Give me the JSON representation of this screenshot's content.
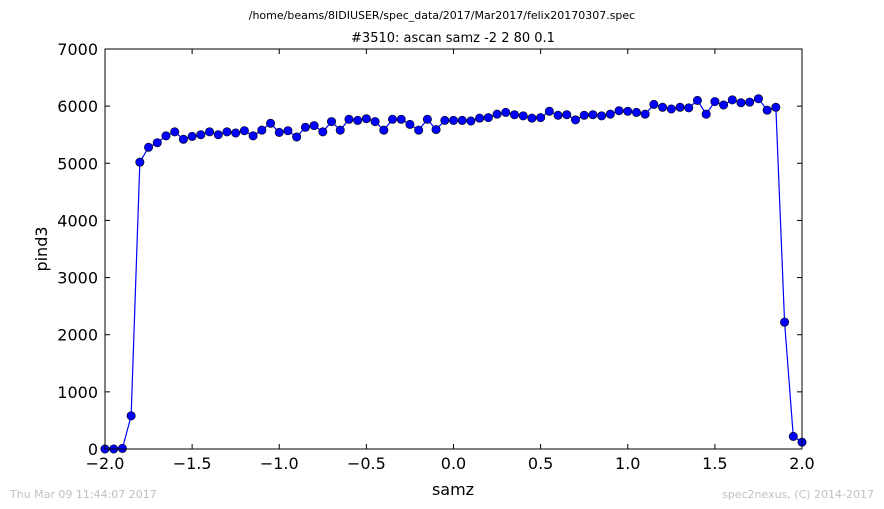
{
  "suptitle": "/home/beams/8IDIUSER/spec_data/2017/Mar2017/felix20170307.spec",
  "footer_left": "Thu Mar 09 11:44:07 2017",
  "footer_right": "spec2nexus, (C) 2014-2017",
  "chart_data": {
    "type": "line",
    "title": "#3510: ascan  samz -2 2  80 0.1",
    "xlabel": "samz",
    "ylabel": "pind3",
    "xlim": [
      -2.0,
      2.0
    ],
    "ylim": [
      0,
      7000
    ],
    "xticks": [
      -2.0,
      -1.5,
      -1.0,
      -0.5,
      0.0,
      0.5,
      1.0,
      1.5,
      2.0
    ],
    "xtick_labels": [
      "−2.0",
      "−1.5",
      "−1.0",
      "−0.5",
      "0.0",
      "0.5",
      "1.0",
      "1.5",
      "2.0"
    ],
    "yticks": [
      0,
      1000,
      2000,
      3000,
      4000,
      5000,
      6000,
      7000
    ],
    "ytick_labels": [
      "0",
      "1000",
      "2000",
      "3000",
      "4000",
      "5000",
      "6000",
      "7000"
    ],
    "grid": false,
    "series_color": "#0000ff",
    "series": [
      {
        "x": [
          -2.0,
          -1.95,
          -1.9,
          -1.85,
          -1.8,
          -1.75,
          -1.7,
          -1.65,
          -1.6,
          -1.55,
          -1.5,
          -1.45,
          -1.4,
          -1.35,
          -1.3,
          -1.25,
          -1.2,
          -1.15,
          -1.1,
          -1.05,
          -1.0,
          -0.95,
          -0.9,
          -0.85,
          -0.8,
          -0.75,
          -0.7,
          -0.65,
          -0.6,
          -0.55,
          -0.5,
          -0.45,
          -0.4,
          -0.35,
          -0.3,
          -0.25,
          -0.2,
          -0.15,
          -0.1,
          -0.05,
          0.0,
          0.05,
          0.1,
          0.15,
          0.2,
          0.25,
          0.3,
          0.35,
          0.4,
          0.45,
          0.5,
          0.55,
          0.6,
          0.65,
          0.7,
          0.75,
          0.8,
          0.85,
          0.9,
          0.95,
          1.0,
          1.05,
          1.1,
          1.15,
          1.2,
          1.25,
          1.3,
          1.35,
          1.4,
          1.45,
          1.5,
          1.55,
          1.6,
          1.65,
          1.7,
          1.75,
          1.8,
          1.85,
          1.9,
          1.95,
          2.0
        ],
        "y": [
          0,
          0,
          10,
          580,
          5020,
          5280,
          5360,
          5480,
          5550,
          5420,
          5470,
          5500,
          5550,
          5500,
          5550,
          5530,
          5570,
          5480,
          5580,
          5700,
          5540,
          5570,
          5460,
          5630,
          5660,
          5550,
          5730,
          5580,
          5770,
          5750,
          5780,
          5730,
          5580,
          5770,
          5770,
          5680,
          5580,
          5770,
          5590,
          5750,
          5750,
          5750,
          5740,
          5790,
          5800,
          5860,
          5890,
          5850,
          5830,
          5790,
          5800,
          5910,
          5840,
          5850,
          5760,
          5840,
          5850,
          5830,
          5860,
          5920,
          5910,
          5890,
          5860,
          6030,
          5980,
          5950,
          5980,
          5970,
          6100,
          5860,
          6080,
          6020,
          6110,
          6060,
          6070,
          6130,
          5930,
          5980,
          2220,
          220,
          120
        ]
      }
    ]
  }
}
